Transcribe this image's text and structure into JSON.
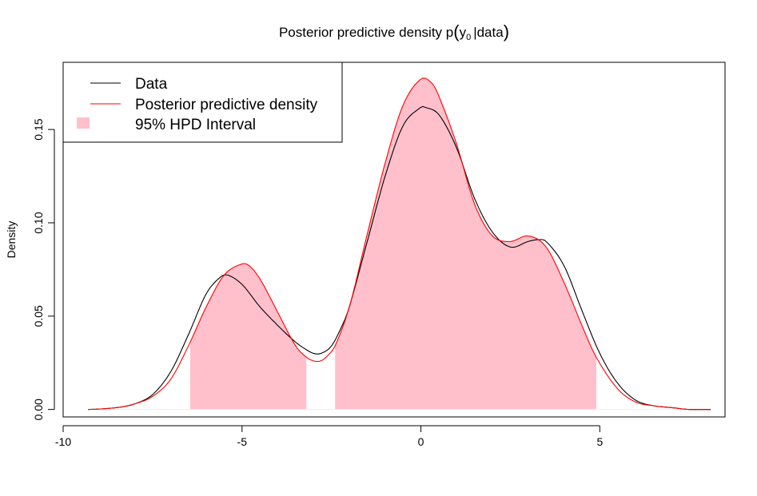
{
  "chart_data": {
    "type": "line",
    "title": "Posterior predictive density p",
    "title_var": "y",
    "title_sub": "0",
    "title_rest": "|data",
    "xlabel": "",
    "ylabel": "Density",
    "xlim": [
      -10,
      8.5
    ],
    "ylim": [
      -0.004,
      0.186
    ],
    "xticks": [
      -10,
      -5,
      0,
      5
    ],
    "xtick_labels": [
      "-10",
      "-5",
      "0",
      "5"
    ],
    "yticks": [
      0.0,
      0.05,
      0.1,
      0.15
    ],
    "ytick_labels": [
      "0.00",
      "0.05",
      "0.10",
      "0.15"
    ],
    "grid": false,
    "legend_position": "top-left",
    "legend": [
      {
        "label": "Data",
        "type": "line",
        "color": "#000000"
      },
      {
        "label": "Posterior predictive density",
        "type": "line",
        "color": "#ff0000"
      },
      {
        "label": "95% HPD Interval",
        "type": "fill",
        "color": "#ffc0cb"
      }
    ],
    "hpd_intervals": [
      [
        -6.45,
        -3.2
      ],
      [
        -2.4,
        4.9
      ]
    ],
    "series": [
      {
        "name": "Data",
        "color": "#000000",
        "x": [
          -9.3,
          -8.5,
          -8.0,
          -7.5,
          -7.0,
          -6.5,
          -6.0,
          -5.6,
          -5.4,
          -5.0,
          -4.5,
          -4.0,
          -3.5,
          -3.2,
          -3.0,
          -2.8,
          -2.5,
          -2.2,
          -2.0,
          -1.5,
          -1.0,
          -0.5,
          0.0,
          0.1,
          0.5,
          1.0,
          1.5,
          2.0,
          2.5,
          3.0,
          3.3,
          3.5,
          4.0,
          4.5,
          5.0,
          5.5,
          6.0,
          6.5,
          7.0,
          7.5,
          8.1
        ],
        "y": [
          0.0,
          0.001,
          0.003,
          0.008,
          0.02,
          0.04,
          0.062,
          0.071,
          0.072,
          0.067,
          0.055,
          0.045,
          0.036,
          0.032,
          0.03,
          0.03,
          0.034,
          0.045,
          0.055,
          0.09,
          0.125,
          0.152,
          0.162,
          0.162,
          0.158,
          0.14,
          0.113,
          0.095,
          0.087,
          0.09,
          0.091,
          0.09,
          0.077,
          0.053,
          0.03,
          0.014,
          0.005,
          0.002,
          0.001,
          0.0,
          0.0
        ]
      },
      {
        "name": "Posterior predictive density",
        "color": "#ff0000",
        "x": [
          -9.3,
          -8.5,
          -8.0,
          -7.5,
          -7.0,
          -6.5,
          -6.0,
          -5.5,
          -5.0,
          -4.8,
          -4.5,
          -4.0,
          -3.5,
          -3.2,
          -3.0,
          -2.8,
          -2.6,
          -2.4,
          -2.0,
          -1.5,
          -1.0,
          -0.5,
          0.0,
          0.3,
          0.5,
          1.0,
          1.5,
          2.0,
          2.5,
          3.0,
          3.5,
          4.0,
          4.5,
          4.9,
          5.5,
          6.0,
          6.5,
          7.0,
          7.5,
          8.1
        ],
        "y": [
          0.0,
          0.001,
          0.003,
          0.007,
          0.016,
          0.034,
          0.055,
          0.072,
          0.078,
          0.077,
          0.07,
          0.052,
          0.034,
          0.028,
          0.026,
          0.026,
          0.029,
          0.034,
          0.055,
          0.094,
          0.132,
          0.163,
          0.177,
          0.175,
          0.168,
          0.142,
          0.11,
          0.093,
          0.09,
          0.093,
          0.087,
          0.068,
          0.045,
          0.028,
          0.011,
          0.004,
          0.002,
          0.001,
          0.0,
          0.0
        ]
      }
    ]
  }
}
